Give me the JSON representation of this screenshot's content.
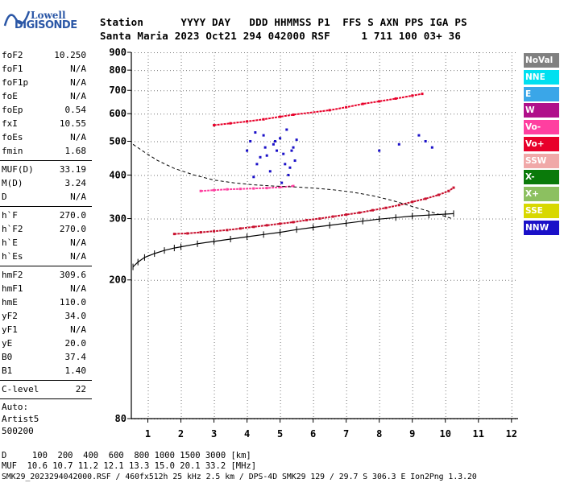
{
  "logo": {
    "line1": "Lowell",
    "line2": "DIGISONDE"
  },
  "header": {
    "row1": "Station      YYYY DAY   DDD HHMMSS P1  FFS S AXN PPS IGA PS",
    "row2": "Santa Maria 2023 Oct21 294 042000 RSF     1 711 100 03+ 36"
  },
  "params_groups": [
    [
      {
        "k": "foF2",
        "v": "10.250"
      },
      {
        "k": "foF1",
        "v": "N/A"
      },
      {
        "k": "foF1p",
        "v": "N/A"
      },
      {
        "k": "foE",
        "v": "N/A"
      },
      {
        "k": "foEp",
        "v": "0.54"
      },
      {
        "k": "fxI",
        "v": "10.55"
      },
      {
        "k": "foEs",
        "v": "N/A"
      },
      {
        "k": "fmin",
        "v": "1.68"
      }
    ],
    [
      {
        "k": "MUF(D)",
        "v": "33.19"
      },
      {
        "k": "M(D)",
        "v": "3.24"
      },
      {
        "k": "D",
        "v": "N/A"
      }
    ],
    [
      {
        "k": "h`F",
        "v": "270.0"
      },
      {
        "k": "h`F2",
        "v": "270.0"
      },
      {
        "k": "h`E",
        "v": "N/A"
      },
      {
        "k": "h`Es",
        "v": "N/A"
      }
    ],
    [
      {
        "k": "hmF2",
        "v": "309.6"
      },
      {
        "k": "hmF1",
        "v": "N/A"
      },
      {
        "k": "hmE",
        "v": "110.0"
      },
      {
        "k": "yF2",
        "v": "34.0"
      },
      {
        "k": "yF1",
        "v": "N/A"
      },
      {
        "k": "yE",
        "v": "20.0"
      },
      {
        "k": "B0",
        "v": "37.4"
      },
      {
        "k": "B1",
        "v": "1.40"
      }
    ],
    [
      {
        "k": "C-level",
        "v": "22"
      }
    ]
  ],
  "autoscaling": [
    "Auto:",
    "Artist5",
    "500200"
  ],
  "legend": [
    {
      "label": "NoVal",
      "color": "#808080"
    },
    {
      "label": "NNE",
      "color": "#00e0f0"
    },
    {
      "label": "E",
      "color": "#3aa6e8"
    },
    {
      "label": "W",
      "color": "#b0108a"
    },
    {
      "label": "Vo-",
      "color": "#ff3fa0"
    },
    {
      "label": "Vo+",
      "color": "#e8002a"
    },
    {
      "label": "SSW",
      "color": "#f0a8a8"
    },
    {
      "label": "X-",
      "color": "#0a7a0a"
    },
    {
      "label": "X+",
      "color": "#8cc060"
    },
    {
      "label": "SSE",
      "color": "#d8d800"
    },
    {
      "label": "NNW",
      "color": "#1a10c8"
    }
  ],
  "footer": {
    "line1": "D     100  200  400  600  800 1000 1500 3000 [km]",
    "line2": "MUF  10.6 10.7 11.2 12.1 13.3 15.0 20.1 33.2 [MHz]",
    "line3": "SMK29_2023294042000.RSF / 460fx512h 25 kHz 2.5 km / DPS-4D SMK29 129 / 29.7 S 306.3 E Ion2Png 1.3.20"
  },
  "chart_data": {
    "type": "scatter",
    "title": "",
    "xlabel": "",
    "ylabel": "",
    "xlim": [
      0.5,
      12.2
    ],
    "ylim": [
      80,
      900
    ],
    "y_scale": "log",
    "xticks": [
      1,
      2,
      3,
      4,
      5,
      6,
      7,
      8,
      9,
      10,
      11,
      12
    ],
    "yticks": [
      80,
      200,
      300,
      400,
      500,
      600,
      700,
      800,
      900
    ],
    "grid": true,
    "legend_position": "right",
    "series": [
      {
        "name": "Vo+",
        "color": "#c8102e",
        "x": [
          1.8,
          2.2,
          2.6,
          3.0,
          3.4,
          3.8,
          4.2,
          4.6,
          5.0,
          5.4,
          5.8,
          6.2,
          6.6,
          7.0,
          7.4,
          7.8,
          8.2,
          8.6,
          9.0,
          9.4,
          9.8,
          10.1,
          10.25
        ],
        "y": [
          271,
          272,
          274,
          276,
          278,
          281,
          284,
          287,
          290,
          293,
          297,
          300,
          304,
          308,
          312,
          317,
          322,
          328,
          335,
          342,
          351,
          360,
          368
        ]
      },
      {
        "name": "Vo-",
        "color": "#ff3fa0",
        "x": [
          2.6,
          3.0,
          3.4,
          3.8,
          4.2,
          4.6,
          5.0,
          5.4
        ],
        "y": [
          360,
          362,
          364,
          365,
          366,
          367,
          369,
          372
        ]
      },
      {
        "name": "Vo+",
        "color": "#e8002a",
        "x": [
          3.0,
          3.5,
          4.0,
          4.5,
          5.0,
          5.4,
          6.5,
          7.0,
          7.5,
          8.0,
          8.5,
          9.0,
          9.3
        ],
        "y": [
          556,
          563,
          570,
          578,
          588,
          596,
          614,
          626,
          640,
          651,
          663,
          676,
          684
        ]
      },
      {
        "name": "NNW",
        "color": "#1a10c8",
        "x": [
          4.0,
          4.1,
          4.3,
          4.5,
          4.6,
          4.8,
          5.0,
          5.1,
          5.2,
          5.3,
          5.4,
          5.5,
          4.2,
          4.4,
          4.7,
          4.9,
          5.05,
          5.25,
          5.45,
          4.25,
          4.55,
          4.85,
          5.15,
          5.35,
          9.2,
          9.4,
          9.6,
          8.0,
          8.6
        ],
        "y": [
          470,
          500,
          430,
          520,
          455,
          490,
          510,
          460,
          540,
          420,
          480,
          505,
          395,
          450,
          410,
          470,
          380,
          400,
          440,
          530,
          480,
          500,
          430,
          470,
          520,
          500,
          480,
          470,
          490
        ]
      }
    ],
    "virtual_height_profile": {
      "x": [
        0.55,
        0.7,
        0.9,
        1.2,
        1.5,
        1.8,
        2.0,
        2.5,
        3.0,
        3.5,
        4.0,
        4.5,
        5.0,
        5.5,
        6.0,
        6.5,
        7.0,
        7.5,
        8.0,
        8.5,
        9.0,
        9.5,
        10.0,
        10.25
      ],
      "y": [
        218,
        225,
        232,
        238,
        243,
        247,
        249,
        254,
        258,
        262,
        266,
        270,
        274,
        279,
        283,
        287,
        291,
        295,
        299,
        302,
        305,
        307,
        309,
        310
      ]
    },
    "profile_dashed": {
      "x": [
        0.55,
        0.9,
        1.3,
        1.8,
        2.4,
        3.0,
        3.6,
        4.2,
        4.8,
        5.4,
        6.0,
        6.6,
        7.2,
        7.8,
        8.4,
        9.0,
        9.6,
        10.2
      ],
      "y": [
        490,
        465,
        440,
        418,
        400,
        387,
        380,
        375,
        372,
        370,
        367,
        363,
        357,
        349,
        338,
        325,
        313,
        300
      ]
    }
  }
}
